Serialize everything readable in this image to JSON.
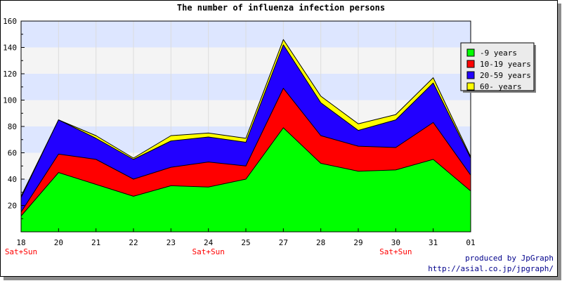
{
  "chart_data": {
    "type": "area",
    "stacked": true,
    "title": "The number of influenza infection persons",
    "xlabel": "",
    "ylabel": "",
    "categories": [
      "18",
      "20",
      "21",
      "22",
      "23",
      "24",
      "25",
      "27",
      "28",
      "29",
      "30",
      "31",
      "01"
    ],
    "weekend_labels": [
      "Sat+Sun",
      "",
      "",
      "",
      "",
      "Sat+Sun",
      "",
      "",
      "",
      "",
      "Sat+Sun",
      "",
      ""
    ],
    "yticks": [
      20,
      40,
      60,
      80,
      100,
      120,
      140,
      160
    ],
    "ylim": [
      0,
      160
    ],
    "grid": true,
    "legend_position": "right",
    "series": [
      {
        "name": "-9 years",
        "color": "#00ff00",
        "values": [
          12,
          45,
          36,
          27,
          35,
          34,
          40,
          79,
          52,
          46,
          47,
          55,
          31
        ]
      },
      {
        "name": "10-19 years",
        "color": "#ff0000",
        "values": [
          3,
          14,
          19,
          13,
          14,
          19,
          10,
          30,
          21,
          19,
          17,
          28,
          12
        ]
      },
      {
        "name": "20-59 years",
        "color": "#2200ff",
        "values": [
          11,
          26,
          16,
          15,
          20,
          19,
          18,
          33,
          25,
          12,
          21,
          30,
          13
        ]
      },
      {
        "name": "60- years",
        "color": "#ffff00",
        "values": [
          1,
          0,
          2,
          1,
          4,
          3,
          3,
          4,
          5,
          5,
          4,
          4,
          1
        ]
      }
    ]
  },
  "credits": {
    "line1": "produced by JpGraph",
    "line2": "http://asial.co.jp/jpgraph/"
  }
}
